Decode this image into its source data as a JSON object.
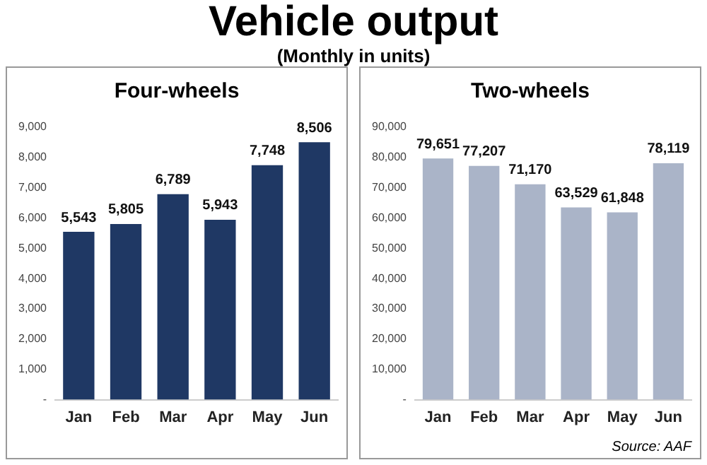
{
  "chart_data": [
    {
      "type": "bar",
      "title": "Four-wheels",
      "annotations": [
        "Vehicle output",
        "(Monthly in units)"
      ],
      "categories": [
        "Jan",
        "Feb",
        "Mar",
        "Apr",
        "May",
        "Jun"
      ],
      "values": [
        5543,
        5805,
        6789,
        5943,
        7748,
        8506
      ],
      "color": "#1f3864",
      "ylim": [
        0,
        9000
      ],
      "yticks": [
        {
          "value": 0,
          "label": "-"
        },
        {
          "value": 1000,
          "label": "1,000"
        },
        {
          "value": 2000,
          "label": "2,000"
        },
        {
          "value": 3000,
          "label": "3,000"
        },
        {
          "value": 4000,
          "label": "4,000"
        },
        {
          "value": 5000,
          "label": "5,000"
        },
        {
          "value": 6000,
          "label": "6,000"
        },
        {
          "value": 7000,
          "label": "7,000"
        },
        {
          "value": 8000,
          "label": "8,000"
        },
        {
          "value": 9000,
          "label": "9,000"
        }
      ],
      "grid": false,
      "data_labels": true,
      "value_labels": [
        "5,543",
        "5,805",
        "6,789",
        "5,943",
        "7,748",
        "8,506"
      ]
    },
    {
      "type": "bar",
      "title": "Two-wheels",
      "annotations": [
        "Source: AAF"
      ],
      "categories": [
        "Jan",
        "Feb",
        "Mar",
        "Apr",
        "May",
        "Jun"
      ],
      "values": [
        79651,
        77207,
        71170,
        63529,
        61848,
        78119
      ],
      "color": "#aab4c8",
      "ylim": [
        0,
        90000
      ],
      "yticks": [
        {
          "value": 0,
          "label": "-"
        },
        {
          "value": 10000,
          "label": "10,000"
        },
        {
          "value": 20000,
          "label": "20,000"
        },
        {
          "value": 30000,
          "label": "30,000"
        },
        {
          "value": 40000,
          "label": "40,000"
        },
        {
          "value": 50000,
          "label": "50,000"
        },
        {
          "value": 60000,
          "label": "60,000"
        },
        {
          "value": 70000,
          "label": "70,000"
        },
        {
          "value": 80000,
          "label": "80,000"
        },
        {
          "value": 90000,
          "label": "90,000"
        }
      ],
      "grid": false,
      "data_labels": true,
      "value_labels": [
        "79,651",
        "77,207",
        "71,170",
        "63,529",
        "61,848",
        "78,119"
      ]
    }
  ]
}
